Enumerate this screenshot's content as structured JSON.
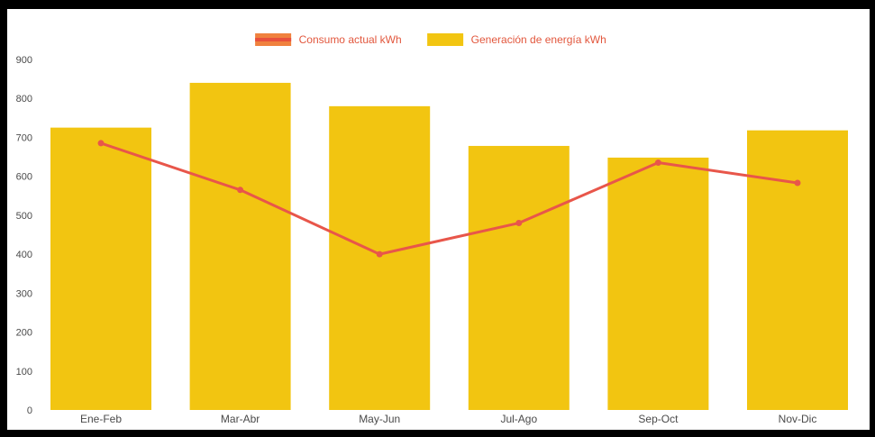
{
  "chart": {
    "legend": [
      {
        "label": "Consumo actual kWh",
        "swatch_color": "#f0813e",
        "overlay_color": "#e8503c",
        "type": "line"
      },
      {
        "label": "Generación de energía kWh",
        "swatch_color": "#f2c511",
        "type": "bar"
      }
    ],
    "label_color": "#e2573d"
  },
  "colors": {
    "page_bg": "#000000",
    "plot_bg": "#ffffff",
    "axis_label": "#4a4a4a",
    "bar_color": "#f2c511",
    "line_color": "#e8564a"
  },
  "chart_data": {
    "type": "bar+line",
    "title": "",
    "xlabel": "",
    "ylabel": "",
    "categories": [
      "Ene-Feb",
      "Mar-Abr",
      "May-Jun",
      "Jul-Ago",
      "Sep-Oct",
      "Nov-Dic"
    ],
    "series": [
      {
        "name": "Generación de energía kWh",
        "type": "bar",
        "color": "#f2c511",
        "values": [
          725,
          840,
          780,
          678,
          648,
          718
        ]
      },
      {
        "name": "Consumo actual kWh",
        "type": "line",
        "color": "#e8564a",
        "values": [
          685,
          565,
          400,
          480,
          635,
          583
        ]
      }
    ],
    "ylim": [
      0,
      900
    ],
    "ytick_step": 100,
    "yticks": [
      0,
      100,
      200,
      300,
      400,
      500,
      600,
      700,
      800,
      900
    ],
    "grid": false,
    "legend_position": "top"
  }
}
